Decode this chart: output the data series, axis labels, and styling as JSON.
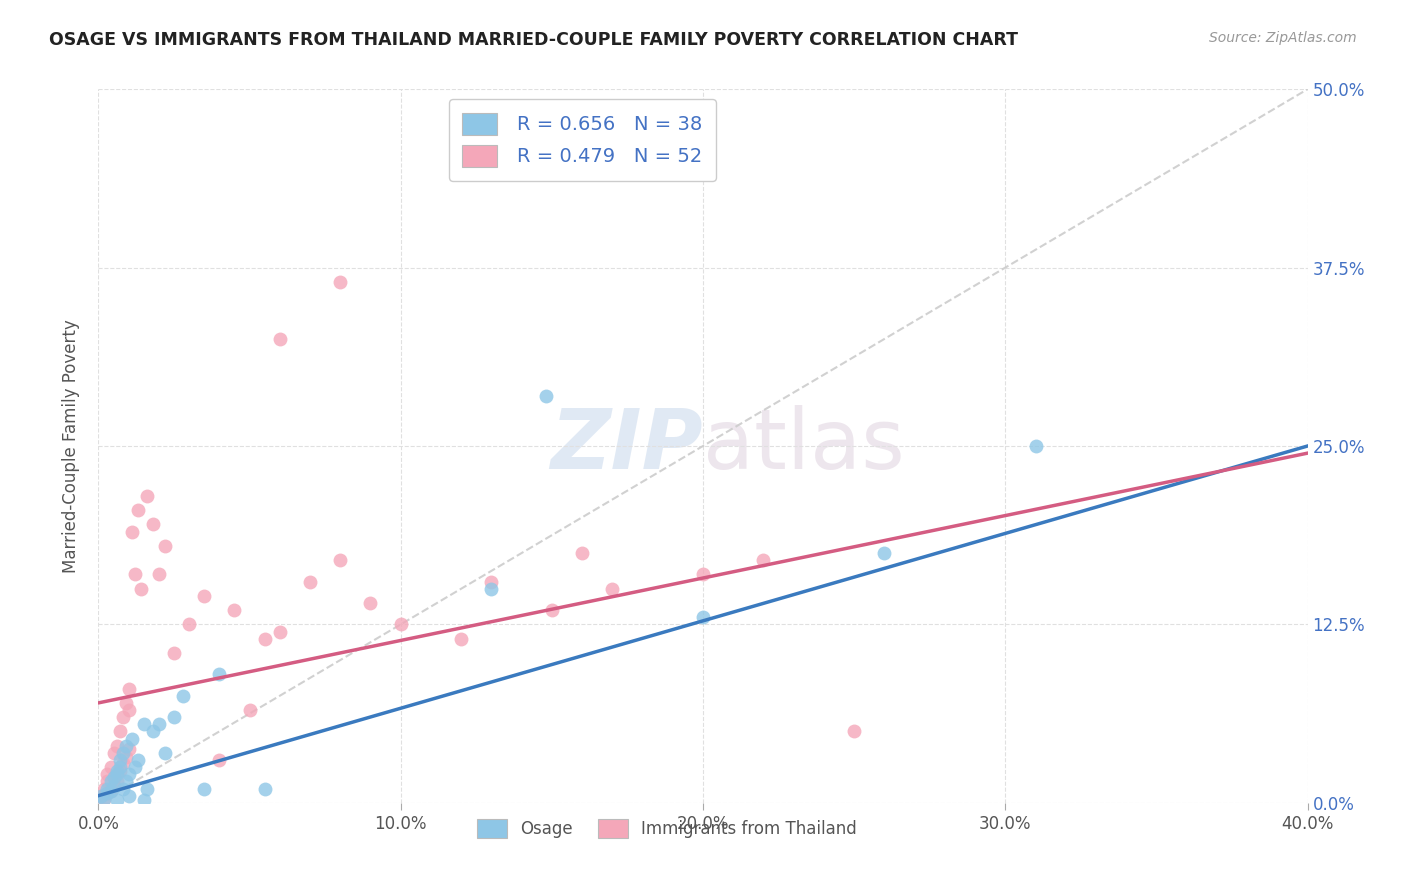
{
  "title": "OSAGE VS IMMIGRANTS FROM THAILAND MARRIED-COUPLE FAMILY POVERTY CORRELATION CHART",
  "source": "Source: ZipAtlas.com",
  "ylabel": "Married-Couple Family Poverty",
  "xlim": [
    0.0,
    0.4
  ],
  "ylim": [
    0.0,
    0.5
  ],
  "xtick_labels": [
    "0.0%",
    "10.0%",
    "20.0%",
    "30.0%",
    "40.0%"
  ],
  "xtick_vals": [
    0.0,
    0.1,
    0.2,
    0.3,
    0.4
  ],
  "ytick_labels": [
    "0.0%",
    "12.5%",
    "25.0%",
    "37.5%",
    "50.0%"
  ],
  "ytick_vals": [
    0.0,
    0.125,
    0.25,
    0.375,
    0.5
  ],
  "legend_labels": [
    "Osage",
    "Immigrants from Thailand"
  ],
  "blue_color": "#8ec6e6",
  "pink_color": "#f4a7b9",
  "blue_line_color": "#3a7abf",
  "pink_line_color": "#d45c82",
  "R_blue": 0.656,
  "N_blue": 38,
  "R_pink": 0.479,
  "N_pink": 52,
  "blue_line": [
    0.0,
    0.005,
    0.4,
    0.25
  ],
  "pink_line": [
    0.0,
    0.07,
    0.4,
    0.245
  ],
  "blue_x": [
    0.001,
    0.002,
    0.003,
    0.003,
    0.004,
    0.004,
    0.005,
    0.005,
    0.006,
    0.006,
    0.006,
    0.007,
    0.007,
    0.008,
    0.008,
    0.009,
    0.009,
    0.01,
    0.01,
    0.011,
    0.012,
    0.013,
    0.015,
    0.016,
    0.018,
    0.02,
    0.022,
    0.025,
    0.028,
    0.035,
    0.04,
    0.055,
    0.13,
    0.148,
    0.2,
    0.26,
    0.31,
    0.015
  ],
  "blue_y": [
    0.005,
    0.003,
    0.007,
    0.01,
    0.008,
    0.015,
    0.012,
    0.018,
    0.002,
    0.02,
    0.022,
    0.025,
    0.03,
    0.035,
    0.01,
    0.04,
    0.015,
    0.02,
    0.005,
    0.045,
    0.025,
    0.03,
    0.055,
    0.01,
    0.05,
    0.055,
    0.035,
    0.06,
    0.075,
    0.01,
    0.09,
    0.01,
    0.15,
    0.285,
    0.13,
    0.175,
    0.25,
    0.002
  ],
  "pink_x": [
    0.001,
    0.002,
    0.002,
    0.003,
    0.003,
    0.003,
    0.004,
    0.004,
    0.005,
    0.005,
    0.005,
    0.006,
    0.006,
    0.007,
    0.007,
    0.008,
    0.008,
    0.009,
    0.009,
    0.01,
    0.01,
    0.011,
    0.012,
    0.013,
    0.014,
    0.016,
    0.018,
    0.02,
    0.022,
    0.025,
    0.03,
    0.035,
    0.04,
    0.045,
    0.05,
    0.055,
    0.06,
    0.07,
    0.08,
    0.09,
    0.1,
    0.12,
    0.13,
    0.15,
    0.16,
    0.17,
    0.2,
    0.22,
    0.25,
    0.06,
    0.08,
    0.01
  ],
  "pink_y": [
    0.005,
    0.003,
    0.01,
    0.007,
    0.015,
    0.02,
    0.008,
    0.025,
    0.012,
    0.018,
    0.035,
    0.04,
    0.015,
    0.05,
    0.022,
    0.06,
    0.028,
    0.07,
    0.032,
    0.08,
    0.038,
    0.19,
    0.16,
    0.205,
    0.15,
    0.215,
    0.195,
    0.16,
    0.18,
    0.105,
    0.125,
    0.145,
    0.03,
    0.135,
    0.065,
    0.115,
    0.325,
    0.155,
    0.17,
    0.14,
    0.125,
    0.115,
    0.155,
    0.135,
    0.175,
    0.15,
    0.16,
    0.17,
    0.05,
    0.12,
    0.365,
    0.065
  ],
  "watermark_zip": "ZIP",
  "watermark_atlas": "atlas",
  "background_color": "#ffffff",
  "grid_color": "#e0e0e0"
}
